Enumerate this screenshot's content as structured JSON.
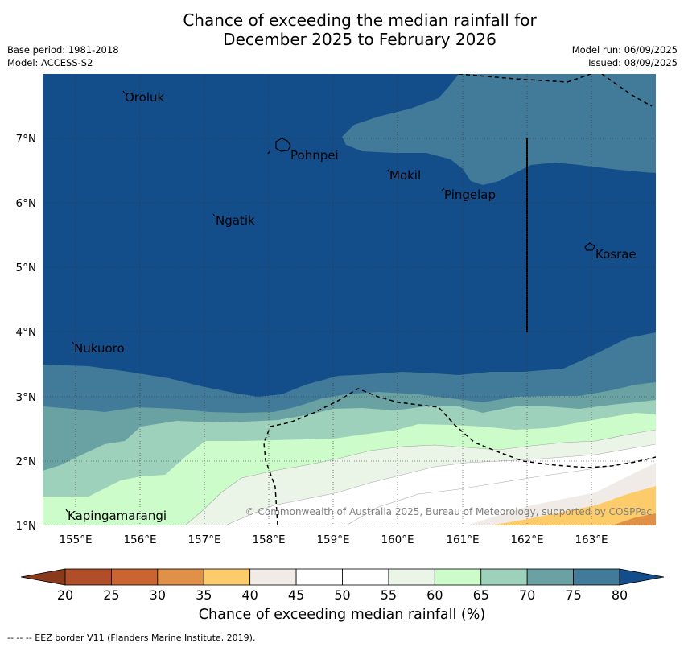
{
  "title_line1": "Chance of exceeding the median rainfall for",
  "title_line2": "December 2025 to February 2026",
  "meta": {
    "base_period": "Base period: 1981-2018",
    "model": "Model: ACCESS-S2",
    "model_run": "Model run: 06/09/2025",
    "issued": "Issued: 08/09/2025"
  },
  "map": {
    "lon_range": [
      154.5,
      164.0
    ],
    "lat_range": [
      1.0,
      8.0
    ],
    "x_ticks": [
      "155°E",
      "156°E",
      "157°E",
      "158°E",
      "159°E",
      "160°E",
      "161°E",
      "162°E",
      "163°E"
    ],
    "y_ticks": [
      "1°N",
      "2°N",
      "3°N",
      "4°N",
      "5°N",
      "6°N",
      "7°N"
    ],
    "gridlines": true,
    "places": [
      {
        "name": "Oroluk",
        "lon": 155.7,
        "lat": 7.7
      },
      {
        "name": "Pohnpei",
        "lon": 158.3,
        "lat": 6.9
      },
      {
        "name": "Mokil",
        "lon": 159.8,
        "lat": 6.5
      },
      {
        "name": "Pingelap",
        "lon": 160.7,
        "lat": 6.2
      },
      {
        "name": "Ngatik",
        "lon": 157.2,
        "lat": 5.8
      },
      {
        "name": "Kosrae",
        "lon": 163.0,
        "lat": 5.3
      },
      {
        "name": "Nukuoro",
        "lon": 154.9,
        "lat": 3.8
      },
      {
        "name": "Kapingamarangi",
        "lon": 154.8,
        "lat": 1.2
      }
    ],
    "copyright": "© Commonwealth of Australia 2025, Bureau of Meteorology, supported by COSPPac"
  },
  "colorbar": {
    "ticks": [
      "20",
      "25",
      "30",
      "35",
      "40",
      "45",
      "50",
      "55",
      "60",
      "65",
      "70",
      "75",
      "80"
    ],
    "colors": [
      "#b14d28",
      "#cc6431",
      "#e09147",
      "#fdcc6a",
      "#f0ebe6",
      "#ffffff",
      "#ffffff",
      "#eaf5e8",
      "#ccfcca",
      "#9ed1bb",
      "#6aa2a3",
      "#427a99"
    ],
    "under_color": "#8a3a1c",
    "over_color": "#134e8a",
    "label": "Chance of exceeding median rainfall (%)"
  },
  "eez_note": "--  --  -- EEZ border V11 (Flanders Marine Institute, 2019)."
}
